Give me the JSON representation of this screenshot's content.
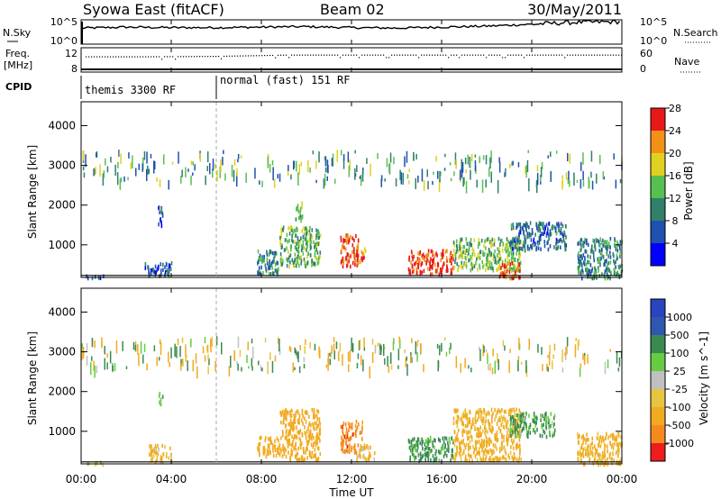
{
  "header": {
    "station": "Syowa East (fitACF)",
    "beam": "Beam 02",
    "date": "30/May/2011"
  },
  "time_axis": {
    "label": "Time UT",
    "ticks": [
      "00:00",
      "04:00",
      "08:00",
      "12:00",
      "16:00",
      "20:00",
      "00:00"
    ]
  },
  "noise_panel": {
    "left_label": "N.Sky",
    "left_ticks": [
      "10^5",
      "10^0"
    ],
    "right_label": "N.Search",
    "right_ticks": [
      "10^5",
      "10^0"
    ]
  },
  "freq_panel": {
    "left_label_1": "Freq.",
    "left_label_2": "[MHz]",
    "left_ticks": [
      "12",
      "8"
    ],
    "right_label": "Nave",
    "right_ticks": [
      "60",
      "0"
    ]
  },
  "cpid": {
    "label": "CPID",
    "segments": [
      {
        "name": "themis 3300 RF",
        "start_hour": 0,
        "end_hour": 6
      },
      {
        "name": "normal (fast) 151 RF",
        "start_hour": 6,
        "end_hour": 24
      }
    ]
  },
  "power_panel": {
    "ylabel": "Slant Range [km]",
    "yticks": [
      "1000",
      "2000",
      "3000",
      "4000"
    ],
    "colorbar_label": "Power [dB]",
    "colorbar_ticks": [
      "4",
      "8",
      "12",
      "16",
      "20",
      "24",
      "28"
    ],
    "colors": [
      "#0000ff",
      "#2050b0",
      "#30806a",
      "#58c050",
      "#e0d020",
      "#f29018",
      "#e81818"
    ]
  },
  "velocity_panel": {
    "ylabel": "Slant Range [km]",
    "yticks": [
      "1000",
      "2000",
      "3000",
      "4000"
    ],
    "colorbar_label": "Velocity [m s^-1]",
    "colorbar_ticks": [
      "-1000",
      "-500",
      "-100",
      "-25",
      "25",
      "100",
      "500",
      "1000"
    ],
    "colors": [
      "#ee1c1c",
      "#f58a1e",
      "#f2aa20",
      "#e6c540",
      "#c0c0c0",
      "#66cc44",
      "#3a8a50",
      "#2f57b0",
      "#2a44c0"
    ]
  },
  "chart_data": [
    {
      "type": "line",
      "panel": "noise",
      "x_unit": "hour UT",
      "xlim": [
        0,
        24
      ],
      "ylim_log10": [
        0,
        5
      ],
      "series": [
        {
          "name": "N.Sky",
          "x": [
            0,
            2,
            4,
            6,
            8,
            10,
            12,
            14,
            16,
            18,
            20,
            22,
            24
          ],
          "y_log10": [
            3.3,
            3.5,
            3.4,
            3.4,
            3.5,
            3.6,
            3.4,
            3.3,
            3.5,
            3.7,
            4.1,
            4.5,
            4.6
          ]
        }
      ]
    },
    {
      "type": "scatter",
      "panel": "frequency",
      "x_unit": "hour UT",
      "xlim": [
        0,
        24
      ],
      "ylim": [
        7,
        13
      ],
      "series": [
        {
          "name": "Freq.",
          "x": [
            0,
            3,
            6,
            9,
            12,
            15,
            18,
            21,
            24
          ],
          "y": [
            10.9,
            10.9,
            11.0,
            11.3,
            11.3,
            11.3,
            11.3,
            11.3,
            11.3
          ]
        }
      ]
    },
    {
      "type": "heatmap",
      "panel": "power",
      "x_unit": "hour UT",
      "y_unit": "km",
      "xlim": [
        0,
        24
      ],
      "ylim": [
        180,
        4600
      ],
      "z_unit": "dB",
      "zlim": [
        0,
        30
      ],
      "patches": [
        {
          "t0": 0.0,
          "t1": 1.0,
          "r0": 200,
          "r1": 260,
          "z": 8
        },
        {
          "t0": 2.8,
          "t1": 4.0,
          "r0": 260,
          "r1": 600,
          "z": 6
        },
        {
          "t0": 3.4,
          "t1": 3.6,
          "r0": 1400,
          "r1": 2000,
          "z": 5
        },
        {
          "t0": 7.8,
          "t1": 8.8,
          "r0": 300,
          "r1": 900,
          "z": 10
        },
        {
          "t0": 8.8,
          "t1": 10.6,
          "r0": 500,
          "r1": 1500,
          "z": 13
        },
        {
          "t0": 9.5,
          "t1": 9.8,
          "r0": 1600,
          "r1": 2100,
          "z": 14
        },
        {
          "t0": 11.5,
          "t1": 12.3,
          "r0": 500,
          "r1": 1300,
          "z": 25
        },
        {
          "t0": 12.2,
          "t1": 12.6,
          "r0": 600,
          "r1": 1000,
          "z": 22
        },
        {
          "t0": 14.5,
          "t1": 16.5,
          "r0": 300,
          "r1": 900,
          "z": 26
        },
        {
          "t0": 16.5,
          "t1": 19.5,
          "r0": 400,
          "r1": 1200,
          "z": 14
        },
        {
          "t0": 18.5,
          "t1": 19.5,
          "r0": 200,
          "r1": 600,
          "z": 24
        },
        {
          "t0": 19.0,
          "t1": 21.5,
          "r0": 900,
          "r1": 1600,
          "z": 8
        },
        {
          "t0": 22.0,
          "t1": 24.0,
          "r0": 200,
          "r1": 1200,
          "z": 10
        }
      ]
    },
    {
      "type": "heatmap",
      "panel": "velocity",
      "x_unit": "hour UT",
      "y_unit": "km",
      "xlim": [
        0,
        24
      ],
      "ylim": [
        180,
        4600
      ],
      "z_unit": "m s^-1",
      "zlim": [
        -1000,
        1000
      ],
      "patches": [
        {
          "t0": 0.0,
          "t1": 1.0,
          "r0": 200,
          "r1": 260,
          "z": -30
        },
        {
          "t0": 3.0,
          "t1": 4.0,
          "r0": 260,
          "r1": 700,
          "z": -100
        },
        {
          "t0": 3.4,
          "t1": 3.6,
          "r0": 1700,
          "r1": 2000,
          "z": 150
        },
        {
          "t0": 7.8,
          "t1": 8.8,
          "r0": 400,
          "r1": 900,
          "z": -200
        },
        {
          "t0": 8.8,
          "t1": 10.6,
          "r0": 300,
          "r1": 1600,
          "z": -250
        },
        {
          "t0": 11.5,
          "t1": 12.5,
          "r0": 500,
          "r1": 1300,
          "z": -700
        },
        {
          "t0": 12.2,
          "t1": 13.0,
          "r0": 300,
          "r1": 700,
          "z": -80
        },
        {
          "t0": 14.5,
          "t1": 16.5,
          "r0": 300,
          "r1": 900,
          "z": 150
        },
        {
          "t0": 16.5,
          "t1": 19.5,
          "r0": 300,
          "r1": 1600,
          "z": -150
        },
        {
          "t0": 19.0,
          "t1": 21.0,
          "r0": 900,
          "r1": 1500,
          "z": 120
        },
        {
          "t0": 22.0,
          "t1": 24.0,
          "r0": 200,
          "r1": 1000,
          "z": -150
        }
      ]
    }
  ]
}
